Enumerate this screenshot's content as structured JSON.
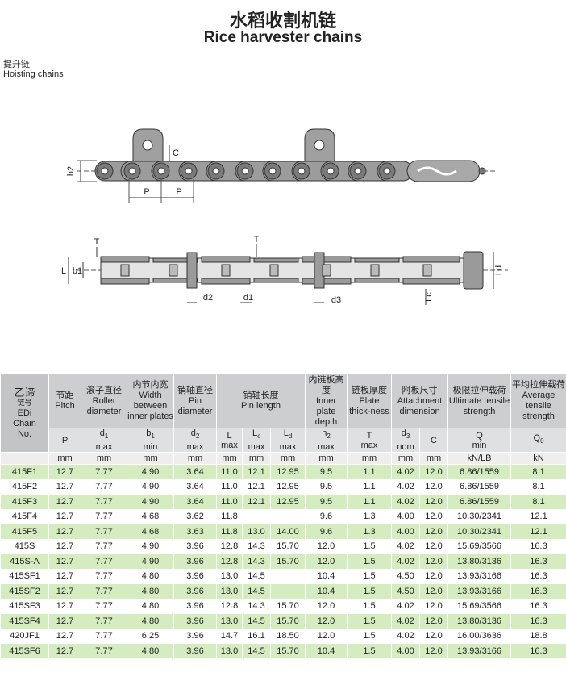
{
  "header": {
    "title_cn": "水稻收割机链",
    "title_en": "Rice harvester chains"
  },
  "section": {
    "title_cn": "提升链",
    "title_en": "Hoisting chains"
  },
  "diagram_side": {
    "labels": [
      "h2",
      "C",
      "P"
    ]
  },
  "diagram_top": {
    "labels": [
      "T",
      "L",
      "b1",
      "d2",
      "d1",
      "d3",
      "Lc",
      "Ld"
    ]
  },
  "table": {
    "chain_no": [
      "乙谛",
      "链号",
      "EDi",
      "Chain",
      "No."
    ],
    "columns": [
      {
        "cn": "节距",
        "en": "Pitch",
        "symbol": "P",
        "unit": "mm"
      },
      {
        "cn": "滚子直径",
        "en": "Roller diameter",
        "symbol": "d",
        "subscript": "1",
        "qual": "max",
        "unit": "mm"
      },
      {
        "cn": "内节内宽",
        "en": "Width between inner plates",
        "symbol": "b",
        "subscript": "1",
        "qual": "min",
        "unit": "mm"
      },
      {
        "cn": "销轴直径",
        "en": "Pin diameter",
        "symbol": "d",
        "subscript": "2",
        "qual": "max",
        "unit": "mm"
      },
      {
        "cn": "销轴长度",
        "en": "Pin length",
        "parts": [
          {
            "symbol": "L",
            "qual": "max",
            "unit": "mm"
          },
          {
            "symbol": "L",
            "subscript": "c",
            "qual": "max",
            "unit": "mm"
          },
          {
            "symbol": "L",
            "subscript": "d",
            "qual": "max",
            "unit": "mm"
          }
        ]
      },
      {
        "cn": "内链板高度",
        "en": "Inner plate depth",
        "symbol": "h",
        "subscript": "2",
        "qual": "max",
        "unit": "mm"
      },
      {
        "cn": "链板厚度",
        "en": "Plate thick-ness",
        "symbol": "T",
        "qual": "max",
        "unit": "mm"
      },
      {
        "cn": "附板尺寸",
        "en": "Attachment dimension",
        "parts": [
          {
            "symbol": "d",
            "subscript": "3",
            "qual": "nom",
            "unit": "mm"
          },
          {
            "symbol": "C",
            "unit": "mm"
          }
        ]
      },
      {
        "cn": "极限拉伸载荷",
        "en": "Ultimate tensile strength",
        "symbol": "Q",
        "qual": "min",
        "unit": "kN/LB"
      },
      {
        "cn": "平均拉伸载荷",
        "en": "Average tensile strength",
        "symbol": "Q",
        "subscript": "0",
        "unit": "kN"
      }
    ],
    "rows": [
      [
        "415F1",
        "12.7",
        "7.77",
        "4.90",
        "3.64",
        "11.0",
        "12.1",
        "12.95",
        "9.5",
        "1.1",
        "4.02",
        "12.0",
        "6.86/1559",
        "8.1"
      ],
      [
        "415F2",
        "12.7",
        "7.77",
        "4.90",
        "3.64",
        "11.0",
        "12.1",
        "12.95",
        "9.5",
        "1.1",
        "4.02",
        "12.0",
        "6.86/1559",
        "8.1"
      ],
      [
        "415F3",
        "12.7",
        "7.77",
        "4.90",
        "3.64",
        "11.0",
        "12.1",
        "12.95",
        "9.5",
        "1.1",
        "4.02",
        "12.0",
        "6.86/1559",
        "8.1"
      ],
      [
        "415F4",
        "12.7",
        "7.77",
        "4.68",
        "3.62",
        "11.8",
        null,
        null,
        "9.6",
        "1.3",
        "4.00",
        "12.0",
        "10.30/2341",
        "12.1"
      ],
      [
        "415F5",
        "12.7",
        "7.77",
        "4.68",
        "3.63",
        "11.8",
        "13.0",
        "14.00",
        "9.6",
        "1.3",
        "4.00",
        "12.0",
        "10.30/2341",
        "12.1"
      ],
      [
        "415S",
        "12.7",
        "7.77",
        "4.90",
        "3.96",
        "12.8",
        "14.3",
        "15.70",
        "12.0",
        "1.5",
        "4.02",
        "12.0",
        "15.69/3566",
        "16.3"
      ],
      [
        "415S-A",
        "12.7",
        "7.77",
        "4.90",
        "3.96",
        "12.8",
        "14.3",
        "15.70",
        "12.0",
        "1.5",
        "4.02",
        "12.0",
        "13.80/3136",
        "16.3"
      ],
      [
        "415SF1",
        "12.7",
        "7.77",
        "4.80",
        "3.96",
        "13.0",
        "14.5",
        null,
        "10.4",
        "1.5",
        "4.50",
        "12.0",
        "13.93/3166",
        "16.3"
      ],
      [
        "415SF2",
        "12.7",
        "7.77",
        "4.80",
        "3.96",
        "13.0",
        "14.5",
        null,
        "10.4",
        "1.5",
        "4.50",
        "12.0",
        "13.93/3166",
        "16.3"
      ],
      [
        "415SF3",
        "12.7",
        "7.77",
        "4.80",
        "3.96",
        "12.8",
        "14.3",
        "15.70",
        "12.0",
        "1.5",
        "4.02",
        "12.0",
        "15.69/3566",
        "16.3"
      ],
      [
        "415SF4",
        "12.7",
        "7.77",
        "4.80",
        "3.96",
        "13.0",
        "14.5",
        "15.70",
        "12.0",
        "1.5",
        "4.02",
        "12.0",
        "13.80/3136",
        "16.3"
      ],
      [
        "420JF1",
        "12.7",
        "7.77",
        "6.25",
        "3.96",
        "14.7",
        "16.1",
        "18.50",
        "12.0",
        "1.5",
        "4.02",
        "12.0",
        "16.00/3636",
        "18.8"
      ],
      [
        "415SF6",
        "12.7",
        "7.77",
        "4.80",
        "3.96",
        "13.0",
        "14.5",
        "15.70",
        "10.4",
        "1.5",
        "4.00",
        "12.0",
        "13.93/3166",
        "16.3"
      ]
    ]
  }
}
